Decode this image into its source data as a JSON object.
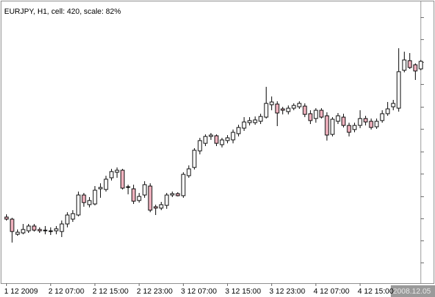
{
  "chart_data": {
    "type": "candlestick",
    "title": "EURJPY, H1, cell: 420, scale: 82%",
    "categories": [
      "1 12 2009",
      null,
      null,
      null,
      null,
      null,
      null,
      null,
      "2 12 07:00",
      null,
      null,
      null,
      null,
      null,
      null,
      null,
      "2 12 15:00",
      null,
      null,
      null,
      null,
      null,
      null,
      null,
      "2 12 23:00",
      null,
      null,
      null,
      null,
      null,
      null,
      null,
      "3 12 07:00",
      null,
      null,
      null,
      null,
      null,
      null,
      null,
      "3 12 15:00",
      null,
      null,
      null,
      null,
      null,
      null,
      null,
      "3 12 23:00",
      null,
      null,
      null,
      null,
      null,
      null,
      null,
      "4 12 07:00",
      null,
      null,
      null,
      null,
      null,
      null,
      null,
      "4 12 15:00",
      null,
      null,
      null,
      null,
      null,
      null,
      null,
      null,
      null,
      null,
      null
    ],
    "open": [
      96,
      93,
      71,
      73,
      76,
      83,
      78,
      77,
      76,
      76,
      75,
      86,
      93,
      99,
      128,
      114,
      115,
      137,
      136,
      153,
      161,
      164,
      139,
      137,
      120,
      128,
      141,
      111,
      109,
      113,
      128,
      130,
      127,
      156,
      168,
      192,
      203,
      213,
      214,
      201,
      207,
      208,
      217,
      225,
      233,
      233,
      235,
      241,
      259,
      260,
      253,
      249,
      254,
      256,
      257,
      246,
      239,
      251,
      243,
      216,
      235,
      241,
      229,
      223,
      229,
      239,
      235,
      227,
      236,
      246,
      256,
      254,
      309,
      323,
      317,
      311
    ],
    "high": [
      100,
      95,
      78,
      86,
      86,
      86,
      81,
      83,
      81,
      83,
      91,
      103,
      106,
      133,
      131,
      125,
      141,
      145,
      156,
      166,
      168,
      166,
      143,
      143,
      131,
      148,
      145,
      114,
      118,
      131,
      133,
      132,
      161,
      171,
      196,
      211,
      216,
      218,
      216,
      211,
      215,
      223,
      230,
      241,
      241,
      242,
      246,
      285,
      271,
      264,
      256,
      258,
      261,
      264,
      261,
      251,
      254,
      254,
      248,
      241,
      247,
      246,
      233,
      233,
      251,
      243,
      239,
      239,
      251,
      263,
      266,
      341,
      336,
      334,
      319,
      324
    ],
    "low": [
      91,
      59,
      69,
      71,
      73,
      75,
      73,
      71,
      70,
      71,
      67,
      81,
      89,
      97,
      111,
      110,
      113,
      124,
      133,
      149,
      153,
      136,
      129,
      115,
      117,
      124,
      103,
      99,
      106,
      108,
      125,
      126,
      124,
      153,
      165,
      187,
      199,
      208,
      199,
      197,
      203,
      203,
      213,
      221,
      229,
      230,
      231,
      239,
      251,
      228,
      245,
      245,
      251,
      253,
      241,
      231,
      233,
      239,
      207,
      213,
      231,
      226,
      213,
      219,
      225,
      229,
      223,
      224,
      233,
      243,
      251,
      249,
      306,
      311,
      295,
      309
    ],
    "close": [
      93,
      75,
      74,
      78,
      83,
      77,
      76,
      76,
      75,
      79,
      86,
      99,
      101,
      128,
      117,
      120,
      135,
      139,
      151,
      162,
      164,
      138,
      140,
      119,
      126,
      143,
      106,
      109,
      114,
      128,
      130,
      127,
      158,
      166,
      193,
      207,
      213,
      215,
      203,
      208,
      211,
      219,
      226,
      234,
      236,
      237,
      242,
      261,
      263,
      247,
      251,
      254,
      258,
      261,
      245,
      236,
      251,
      241,
      215,
      238,
      243,
      229,
      219,
      229,
      239,
      234,
      226,
      235,
      246,
      253,
      261,
      307,
      324,
      313,
      308,
      322
    ],
    "up_color": "#ffffff",
    "down_color": "#f2b3c0",
    "outline_color": "#000000",
    "ylim": [
      0,
      409
    ],
    "yticks": [
      30,
      62,
      94,
      126,
      159,
      191,
      224,
      256,
      289,
      321,
      354,
      386
    ],
    "cursor_label": "2008.12.05"
  }
}
